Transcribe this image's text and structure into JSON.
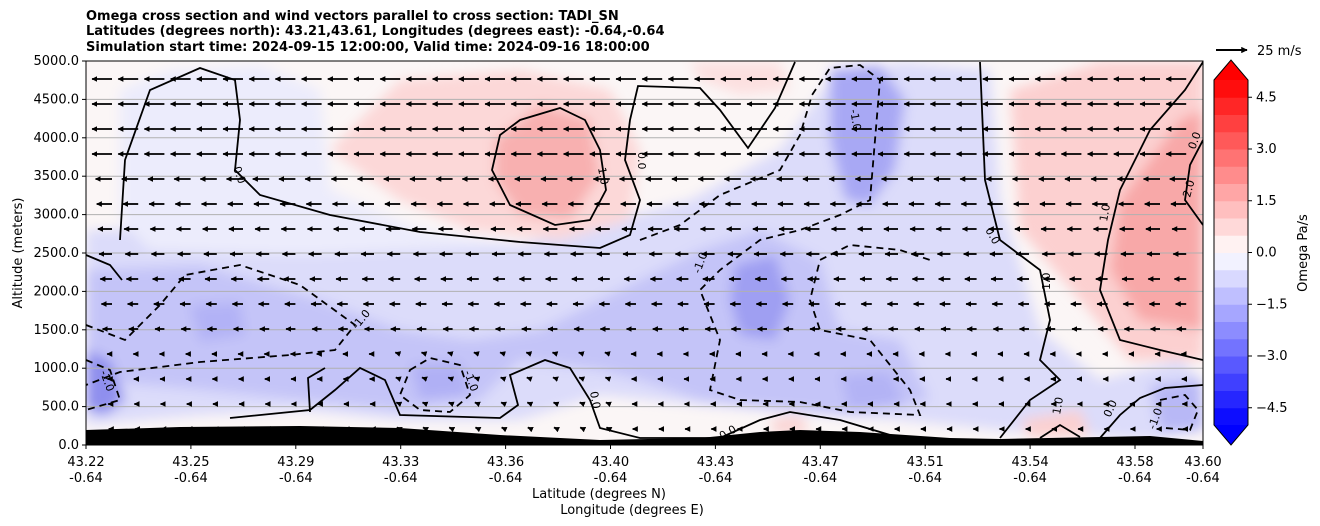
{
  "chart_data": {
    "type": "heatmap",
    "title_lines": [
      "Omega cross section and wind vectors parallel to cross section: TADI_SN",
      "Latitudes (degrees north): 43.21,43.61, Longitudes (degrees east): -0.64,-0.64",
      "Simulation start time: 2024-09-15 12:00:00, Valid time: 2024-09-16 18:00:00"
    ],
    "xlabel_lines": [
      "Latitude (degrees N)",
      "Longitude (degrees E)"
    ],
    "ylabel": "Altitude (meters)",
    "x_ticks": [
      {
        "lat": "43.22",
        "lon": "-0.64"
      },
      {
        "lat": "43.25",
        "lon": "-0.64"
      },
      {
        "lat": "43.29",
        "lon": "-0.64"
      },
      {
        "lat": "43.33",
        "lon": "-0.64"
      },
      {
        "lat": "43.36",
        "lon": "-0.64"
      },
      {
        "lat": "43.40",
        "lon": "-0.64"
      },
      {
        "lat": "43.43",
        "lon": "-0.64"
      },
      {
        "lat": "43.47",
        "lon": "-0.64"
      },
      {
        "lat": "43.51",
        "lon": "-0.64"
      },
      {
        "lat": "43.54",
        "lon": "-0.64"
      },
      {
        "lat": "43.58",
        "lon": "-0.64"
      },
      {
        "lat": "43.60",
        "lon": "-0.64"
      }
    ],
    "y_ticks": [
      "0.0",
      "500.0",
      "1000.0",
      "1500.0",
      "2000.0",
      "2500.0",
      "3000.0",
      "3500.0",
      "4000.0",
      "4500.0",
      "5000.0"
    ],
    "ylim": [
      0,
      5000
    ],
    "grid": "horizontal",
    "colorbar": {
      "label": "Omega Pa/s",
      "range": [
        -5,
        5
      ],
      "ticks": [
        "4.5",
        "3.0",
        "1.5",
        "0.0",
        "−1.5",
        "−3.0",
        "−4.5"
      ],
      "extend": "both",
      "colormap": "bwr",
      "over_color": "#ff0000",
      "under_color": "#0000ff"
    },
    "quiver_key": {
      "label": "25 m/s",
      "value_ms": 25
    },
    "wind_vectors": "mostly southward (pointing toward lower latitude), strongest aloft (about 20-25 m/s above 3000 m), weak near the surface",
    "omega_features": [
      {
        "sign": "positive",
        "lat": 43.38,
        "alt_m": 3500,
        "value": 1.5
      },
      {
        "sign": "positive",
        "lat": 43.59,
        "alt_m": 3000,
        "value": 2.5
      },
      {
        "sign": "negative",
        "lat": 43.48,
        "alt_m": 4300,
        "value": -1.8
      },
      {
        "sign": "negative",
        "lat": 43.45,
        "alt_m": 1900,
        "value": -2.0
      },
      {
        "sign": "negative",
        "lat": 43.23,
        "alt_m": 800,
        "value": -2.5
      },
      {
        "sign": "negative",
        "lat": 43.26,
        "alt_m": 1650,
        "value": -1.7
      },
      {
        "sign": "negative",
        "lat": 43.34,
        "alt_m": 900,
        "value": -1.3
      },
      {
        "sign": "negative",
        "lat": 43.49,
        "alt_m": 700,
        "value": -1.6
      }
    ],
    "contour_labels": [
      "0.0",
      "0.0",
      "-1.0",
      "1.0",
      "0.0",
      "-1.0",
      "-1.0",
      "1.0",
      "0.0",
      "-2.0",
      "0.0",
      "0.0",
      "0.0",
      "1.0",
      "2.0",
      "0.0",
      "-1.0",
      "1.0",
      "-1.0"
    ],
    "terrain": "black filled orography along the bottom, about 120-250 m high"
  }
}
